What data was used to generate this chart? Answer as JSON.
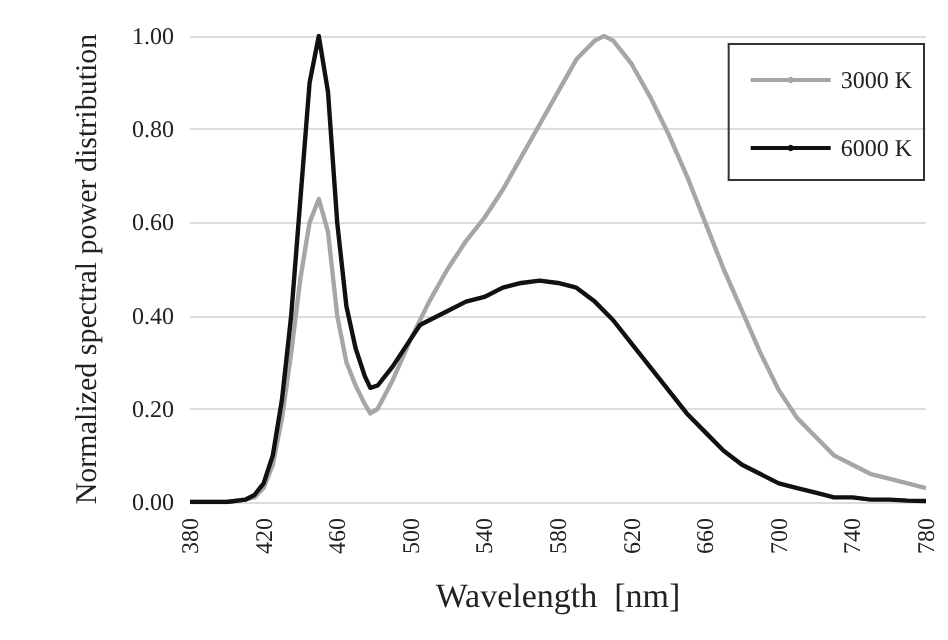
{
  "chart_data": {
    "type": "line",
    "xlabel": "Wavelength  [nm]",
    "ylabel": "Normalized spectral power distribution",
    "xlim": [
      380,
      780
    ],
    "xticks": [
      380,
      420,
      460,
      500,
      540,
      580,
      620,
      660,
      700,
      740,
      780
    ],
    "ylim": [
      0,
      1
    ],
    "yticks": [
      {
        "value": 0,
        "label": "0.00"
      },
      {
        "value": 0.2,
        "label": "0.20"
      },
      {
        "value": 0.4,
        "label": "0.40"
      },
      {
        "value": 0.6,
        "label": "0.60"
      },
      {
        "value": 0.8,
        "label": "0.80"
      },
      {
        "value": 1,
        "label": "1.00"
      }
    ],
    "grid": "y",
    "legend": "top right",
    "marker": "none",
    "line_style": "solid",
    "series": [
      {
        "name": "3000 K",
        "color": "#a6a6a6",
        "x": [
          380,
          400,
          410,
          415,
          420,
          425,
          430,
          435,
          440,
          445,
          450,
          455,
          460,
          465,
          470,
          475,
          478,
          482,
          490,
          500,
          510,
          520,
          530,
          540,
          550,
          560,
          570,
          580,
          590,
          600,
          605,
          610,
          620,
          630,
          640,
          650,
          660,
          670,
          680,
          690,
          700,
          710,
          720,
          730,
          740,
          750,
          760,
          770,
          780
        ],
        "values": [
          0,
          0,
          0.005,
          0.01,
          0.03,
          0.08,
          0.18,
          0.32,
          0.48,
          0.6,
          0.65,
          0.58,
          0.4,
          0.3,
          0.25,
          0.21,
          0.19,
          0.2,
          0.26,
          0.35,
          0.43,
          0.5,
          0.56,
          0.61,
          0.67,
          0.74,
          0.81,
          0.88,
          0.95,
          0.99,
          1,
          0.99,
          0.94,
          0.87,
          0.79,
          0.7,
          0.6,
          0.5,
          0.41,
          0.32,
          0.24,
          0.18,
          0.14,
          0.1,
          0.08,
          0.06,
          0.05,
          0.04,
          0.03
        ]
      },
      {
        "name": "6000 K",
        "color": "#111111",
        "x": [
          380,
          400,
          410,
          415,
          420,
          425,
          430,
          435,
          440,
          445,
          450,
          455,
          460,
          465,
          470,
          475,
          478,
          482,
          490,
          500,
          505,
          510,
          520,
          530,
          540,
          550,
          560,
          570,
          580,
          590,
          600,
          610,
          620,
          630,
          640,
          650,
          660,
          670,
          680,
          690,
          700,
          710,
          720,
          730,
          740,
          750,
          760,
          770,
          780
        ],
        "values": [
          0,
          0,
          0.005,
          0.015,
          0.04,
          0.1,
          0.22,
          0.4,
          0.65,
          0.9,
          1,
          0.88,
          0.6,
          0.42,
          0.33,
          0.27,
          0.245,
          0.25,
          0.29,
          0.35,
          0.38,
          0.39,
          0.41,
          0.43,
          0.44,
          0.46,
          0.47,
          0.475,
          0.47,
          0.46,
          0.43,
          0.39,
          0.34,
          0.29,
          0.24,
          0.19,
          0.15,
          0.11,
          0.08,
          0.06,
          0.04,
          0.03,
          0.02,
          0.01,
          0.01,
          0.005,
          0.005,
          0.003,
          0.002
        ]
      }
    ]
  }
}
